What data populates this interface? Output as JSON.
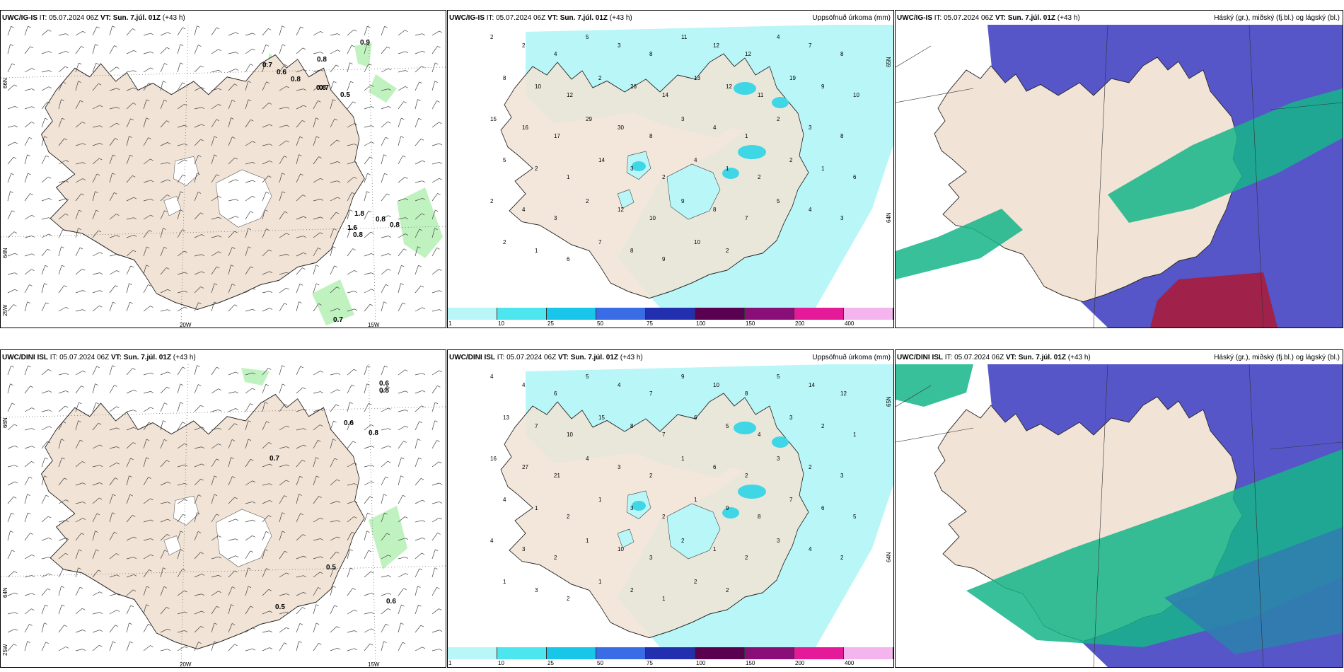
{
  "colors": {
    "land": "#f1e3d5",
    "coast": "#222222",
    "precip_light": "#b9f6f7",
    "precip_mid": "#7ee9ee",
    "precip_strong": "#3fd6e6",
    "high_cloud": "#5656c8",
    "low_cloud": "#15b58a",
    "mid_cloud": "#2f7fae",
    "red_cloud": "#a0214a",
    "green_wind": "#bff2bf"
  },
  "panels": [
    {
      "model": "UWC/IG-IS",
      "it_label": "IT:",
      "it_value": "05.07.2024 06Z",
      "vt_label": "VT:",
      "vt_value": "Sun. 7.júl. 01Z",
      "lead": "(+43 h)",
      "right_title": "",
      "lat_labels": [
        "66N",
        "64N",
        "25W"
      ],
      "lon_labels": [
        "20W",
        "15W"
      ],
      "gust_labels": [
        "0.9",
        "0.7",
        "0.6",
        "0.8",
        "0.7",
        "0.8",
        "0.5",
        "0.8",
        "0.8",
        "0.8",
        "1.8",
        "1.6",
        "0.8",
        "0.7"
      ]
    },
    {
      "model": "UWC/IG-IS",
      "it_label": "IT:",
      "it_value": "05.07.2024 06Z",
      "vt_label": "VT:",
      "vt_value": "Sun. 7.júl. 01Z",
      "lead": "(+43 h)",
      "right_title": "Uppsöfnuð úrkoma (mm)",
      "lat_labels": [
        "65N",
        "64N"
      ],
      "precip_labels": [
        "2",
        "2",
        "4",
        "5",
        "3",
        "8",
        "11",
        "12",
        "12",
        "4",
        "7",
        "8",
        "8",
        "10",
        "12",
        "2",
        "26",
        "14",
        "13",
        "12",
        "11",
        "19",
        "9",
        "10",
        "15",
        "16",
        "17",
        "29",
        "30",
        "8",
        "3",
        "4",
        "1",
        "2",
        "3",
        "8",
        "5",
        "2",
        "1",
        "14",
        "3",
        "2",
        "4",
        "1",
        "2",
        "2",
        "1",
        "6",
        "2",
        "4",
        "3",
        "2",
        "12",
        "10",
        "9",
        "8",
        "7",
        "5",
        "4",
        "3",
        "2",
        "1",
        "6",
        "7",
        "8",
        "9",
        "10",
        "2"
      ],
      "colorbar_ticks": [
        "1",
        "10",
        "25",
        "50",
        "75",
        "100",
        "150",
        "200",
        "400"
      ],
      "colorbar_colors": [
        "#b9f6f7",
        "#4de6ee",
        "#18c6ea",
        "#3a6ce6",
        "#2230b0",
        "#5a0050",
        "#8a0e78",
        "#e41a98",
        "#f4b4ee"
      ]
    },
    {
      "model": "UWC/IG-IS",
      "it_label": "IT:",
      "it_value": "05.07.2024 06Z",
      "vt_label": "VT:",
      "vt_value": "Sun. 7.júl. 01Z",
      "lead": "(+43 h)",
      "right_title": "Háský (gr.), miðský (fj.bl.) og lágský (bl.)"
    },
    {
      "model": "UWC/DINI ISL",
      "it_label": "IT:",
      "it_value": "05.07.2024 06Z",
      "vt_label": "VT:",
      "vt_value": "Sun. 7.júl. 01Z",
      "lead": "(+43 h)",
      "right_title": "",
      "lat_labels": [
        "66N",
        "64N",
        "25W"
      ],
      "lon_labels": [
        "20W",
        "15W"
      ],
      "gust_labels": [
        "0.6",
        "0.8",
        "0.6",
        "0.8",
        "0.7",
        "0.5",
        "0.5",
        "0.6"
      ]
    },
    {
      "model": "UWC/DINI ISL",
      "it_label": "IT:",
      "it_value": "05.07.2024 06Z",
      "vt_label": "VT:",
      "vt_value": "Sun. 7.júl. 01Z",
      "lead": "(+43 h)",
      "right_title": "Uppsöfnuð úrkoma (mm)",
      "lat_labels": [
        "65N",
        "64N"
      ],
      "precip_labels": [
        "4",
        "4",
        "6",
        "5",
        "4",
        "7",
        "9",
        "10",
        "8",
        "5",
        "14",
        "12",
        "13",
        "7",
        "10",
        "15",
        "8",
        "7",
        "6",
        "5",
        "4",
        "3",
        "2",
        "1",
        "16",
        "27",
        "21",
        "4",
        "3",
        "2",
        "1",
        "6",
        "2",
        "3",
        "2",
        "3",
        "4",
        "1",
        "2",
        "1",
        "3",
        "2",
        "1",
        "9",
        "8",
        "7",
        "6",
        "5",
        "4",
        "3",
        "2",
        "1",
        "10",
        "3",
        "2",
        "1",
        "2",
        "3",
        "4",
        "2",
        "1",
        "3",
        "2",
        "1",
        "2",
        "1",
        "2",
        "2"
      ],
      "colorbar_ticks": [
        "1",
        "10",
        "25",
        "50",
        "75",
        "100",
        "150",
        "200",
        "400"
      ],
      "colorbar_colors": [
        "#b9f6f7",
        "#4de6ee",
        "#18c6ea",
        "#3a6ce6",
        "#2230b0",
        "#5a0050",
        "#8a0e78",
        "#e41a98",
        "#f4b4ee"
      ]
    },
    {
      "model": "UWC/DINI ISL",
      "it_label": "IT:",
      "it_value": "05.07.2024 06Z",
      "vt_label": "VT:",
      "vt_value": "Sun. 7.júl. 01Z",
      "lead": "(+43 h)",
      "right_title": "Háský (gr.), miðský (fj.bl.) og lágský (bl.)"
    }
  ]
}
